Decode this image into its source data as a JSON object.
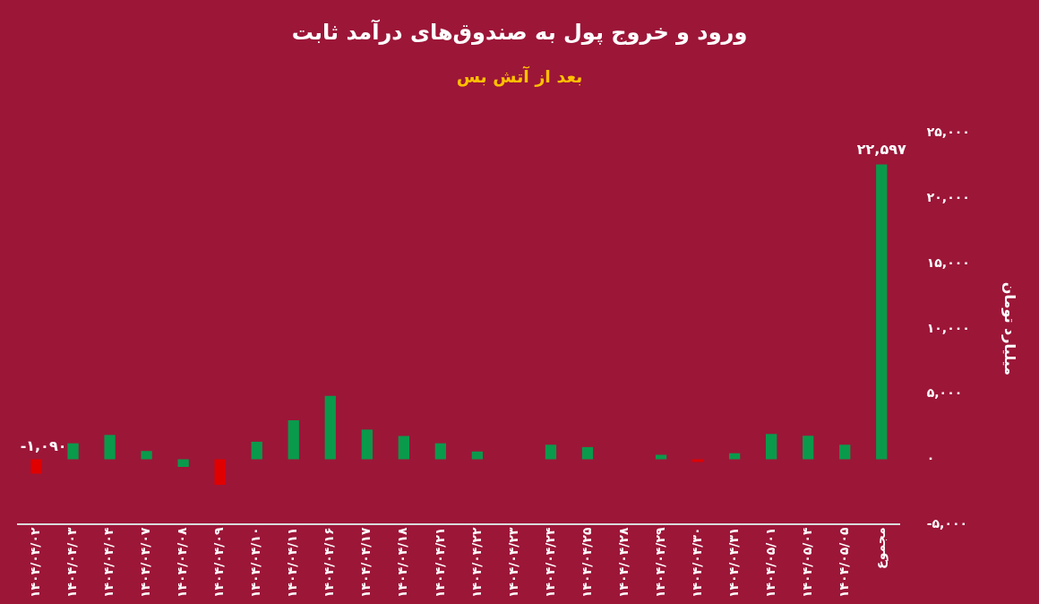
{
  "chart_data": {
    "type": "bar",
    "title": "ورود و خروج پول به صندوق‌های  درآمد ثابت",
    "subtitle": "بعد از آتش بس",
    "ylabel": "میلیارد تومان",
    "categories": [
      "۱۴۰۴/۰۴/۰۲",
      "۱۴۰۴/۰۴/۰۳",
      "۱۴۰۴/۰۴/۰۴",
      "۱۴۰۴/۰۴/۰۷",
      "۱۴۰۴/۰۴/۰۸",
      "۱۴۰۴/۰۴/۰۹",
      "۱۴۰۴/۰۴/۱۰",
      "۱۴۰۴/۰۴/۱۱",
      "۱۴۰۴/۰۴/۱۶",
      "۱۴۰۴/۰۴/۱۷",
      "۱۴۰۴/۰۴/۱۸",
      "۱۴۰۴/۰۴/۲۱",
      "۱۴۰۴/۰۴/۲۲",
      "۱۴۰۴/۰۴/۲۳",
      "۱۴۰۴/۰۴/۲۴",
      "۱۴۰۴/۰۴/۲۵",
      "۱۴۰۴/۰۴/۲۸",
      "۱۴۰۴/۰۴/۲۹",
      "۱۴۰۴/۰۴/۳۰",
      "۱۴۰۴/۰۴/۳۱",
      "۱۴۰۴/۰۵/۰۱",
      "۱۴۰۴/۰۵/۰۴",
      "۱۴۰۴/۰۵/۰۵",
      "مجموع"
    ],
    "values": [
      -1090,
      1230,
      1870,
      640,
      -570,
      -1950,
      1350,
      2990,
      4860,
      2280,
      1790,
      1230,
      600,
      0,
      1120,
      940,
      0,
      350,
      -200,
      470,
      1940,
      1810,
      1120,
      22597
    ],
    "colors": [
      "#e00000",
      "#0a9a4c",
      "#0a9a4c",
      "#0a9a4c",
      "#0a9a4c",
      "#e00000",
      "#0a9a4c",
      "#0a9a4c",
      "#0a9a4c",
      "#0a9a4c",
      "#0a9a4c",
      "#0a9a4c",
      "#0a9a4c",
      "#0a9a4c",
      "#0a9a4c",
      "#0a9a4c",
      "#0a9a4c",
      "#0a9a4c",
      "#e00000",
      "#0a9a4c",
      "#0a9a4c",
      "#0a9a4c",
      "#0a9a4c",
      "#0a9a4c"
    ],
    "value_labels": [
      "-۱,۰۹۰",
      null,
      null,
      null,
      null,
      null,
      null,
      null,
      null,
      null,
      null,
      null,
      null,
      null,
      null,
      null,
      null,
      null,
      null,
      null,
      null,
      null,
      null,
      "۲۲,۵۹۷"
    ],
    "ylim": [
      -5000,
      25000
    ],
    "yticks": [
      {
        "value": -5000,
        "label": "-۵,۰۰۰"
      },
      {
        "value": 0,
        "label": "۰"
      },
      {
        "value": 5000,
        "label": "۵,۰۰۰"
      },
      {
        "value": 10000,
        "label": "۱۰,۰۰۰"
      },
      {
        "value": 15000,
        "label": "۱۵,۰۰۰"
      },
      {
        "value": 20000,
        "label": "۲۰,۰۰۰"
      },
      {
        "value": 25000,
        "label": "۲۵,۰۰۰"
      }
    ],
    "grid": false,
    "legend": false
  }
}
